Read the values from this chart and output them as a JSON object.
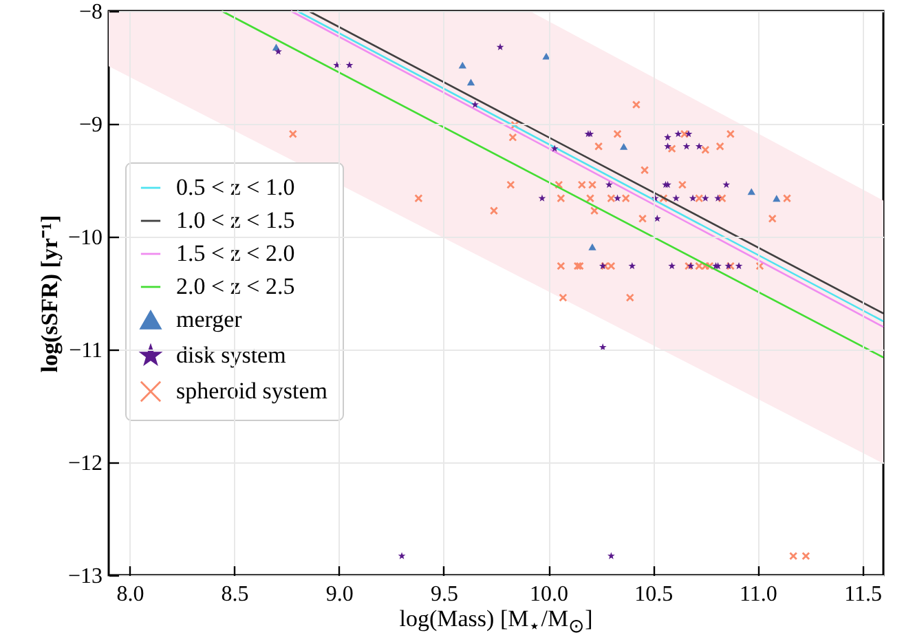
{
  "chart_data": {
    "type": "scatter",
    "xlabel": "log(Mass) [M$_{⋆}$/M$_{⊙}$]",
    "ylabel": "log(sSFR) [yr⁻¹]",
    "xlim": [
      7.9,
      11.6
    ],
    "ylim": [
      -13,
      -8
    ],
    "xticks": [
      {
        "value": 8,
        "label": "8.0"
      },
      {
        "value": 8.5,
        "label": "8.5"
      },
      {
        "value": 9,
        "label": "9.0"
      },
      {
        "value": 9.5,
        "label": "9.5"
      },
      {
        "value": 10,
        "label": "10.0"
      },
      {
        "value": 10.5,
        "label": "10.5"
      },
      {
        "value": 11,
        "label": "11.0"
      },
      {
        "value": 11.5,
        "label": "11.5"
      }
    ],
    "yticks": [
      {
        "value": -13,
        "label": "−13"
      },
      {
        "value": -12,
        "label": "−12"
      },
      {
        "value": -11,
        "label": "−11"
      },
      {
        "value": -10,
        "label": "−10"
      },
      {
        "value": -9,
        "label": "−9"
      },
      {
        "value": -8,
        "label": "−8"
      }
    ],
    "grid": true,
    "legend": "left",
    "series": [
      {
        "type": "area",
        "color": "#fdebee",
        "x": [
          7.9,
          9.91,
          11.6
        ],
        "values": [
          null,
          null,
          null
        ],
        "lower": [
          -8.49,
          -10.4,
          -12.01
        ],
        "upper": [
          -8,
          -8,
          -9.68
        ]
      },
      {
        "type": "line",
        "name": "0.5 < z < 1.0",
        "color": "#4fe3f0",
        "x": [
          8.8,
          11.6
        ],
        "values": [
          -8,
          -10.75
        ]
      },
      {
        "type": "line",
        "name": "1.0 < z < 1.5",
        "color": "#404040",
        "x": [
          8.855,
          11.6
        ],
        "values": [
          -8,
          -10.68
        ]
      },
      {
        "type": "line",
        "name": "1.5 < z < 2.0",
        "color": "#f08cf0",
        "x": [
          8.77,
          11.6
        ],
        "values": [
          -8,
          -10.8
        ]
      },
      {
        "type": "line",
        "name": "2.0 < z < 2.5",
        "color": "#44dd33",
        "x": [
          8.44,
          11.6
        ],
        "values": [
          -8,
          -11.07
        ]
      },
      {
        "type": "scatter",
        "name": "merger",
        "color": "#4a7fbf",
        "marker": "triangle",
        "x": [
          8.7,
          9.59,
          9.63,
          9.99,
          10.21,
          10.36,
          10.97,
          11.09
        ],
        "values": [
          -8.32,
          -8.48,
          -8.63,
          -8.4,
          -10.09,
          -9.2,
          -9.6,
          -9.66
        ]
      },
      {
        "type": "scatter",
        "name": "disk system",
        "color": "#5a1a8c",
        "marker": "star",
        "x": [
          8.71,
          8.99,
          9.05,
          9.65,
          9.77,
          9.97,
          10.03,
          10.19,
          10.2,
          10.29,
          10.33,
          10.26,
          10.4,
          10.52,
          10.51,
          10.61,
          10.69,
          10.75,
          10.81,
          10.56,
          10.57,
          10.85,
          10.57,
          10.57,
          10.62,
          10.67,
          10.66,
          10.72,
          10.59,
          10.68,
          10.8,
          10.81,
          10.86,
          10.91,
          10.26,
          10.3,
          9.3
        ],
        "values": [
          -8.36,
          -8.48,
          -8.48,
          -8.83,
          -8.32,
          -9.66,
          -9.22,
          -9.09,
          -9.09,
          -9.54,
          -9.66,
          -10.26,
          -10.26,
          -9.84,
          -9.66,
          -9.66,
          -9.66,
          -9.66,
          -9.66,
          -9.54,
          -9.54,
          -9.54,
          -9.12,
          -9.2,
          -9.09,
          -9.09,
          -9.2,
          -9.2,
          -10.26,
          -10.26,
          -10.26,
          -10.26,
          -10.26,
          -10.26,
          -10.98,
          -12.83,
          -12.83
        ]
      },
      {
        "type": "scatter",
        "name": "spheroid system",
        "color": "#fa8a6a",
        "marker": "cross",
        "x": [
          8.78,
          9.38,
          9.74,
          9.84,
          9.83,
          9.82,
          10.05,
          10.06,
          10.06,
          10.14,
          10.15,
          10.27,
          10.3,
          10.07,
          10.39,
          10.16,
          10.21,
          10.2,
          10.22,
          10.24,
          10.33,
          10.3,
          10.37,
          10.42,
          10.46,
          10.45,
          10.55,
          10.72,
          10.83,
          10.64,
          10.59,
          10.65,
          10.75,
          10.82,
          10.87,
          11.14,
          11.07,
          10.67,
          10.72,
          10.75,
          10.77,
          10.87,
          11.01,
          11.17,
          11.23
        ],
        "values": [
          -9.09,
          -9.66,
          -9.77,
          -9.01,
          -9.12,
          -9.54,
          -9.54,
          -9.66,
          -10.26,
          -10.26,
          -10.26,
          -10.26,
          -10.26,
          -10.54,
          -10.54,
          -9.54,
          -9.54,
          -9.66,
          -9.77,
          -9.2,
          -9.09,
          -9.66,
          -9.66,
          -8.83,
          -9.41,
          -9.84,
          -9.66,
          -9.66,
          -9.66,
          -9.54,
          -9.22,
          -9.09,
          -9.23,
          -9.2,
          -9.09,
          -9.66,
          -9.84,
          -10.26,
          -10.26,
          -10.26,
          -10.26,
          -10.26,
          -10.26,
          -12.83,
          -12.83
        ]
      }
    ]
  }
}
